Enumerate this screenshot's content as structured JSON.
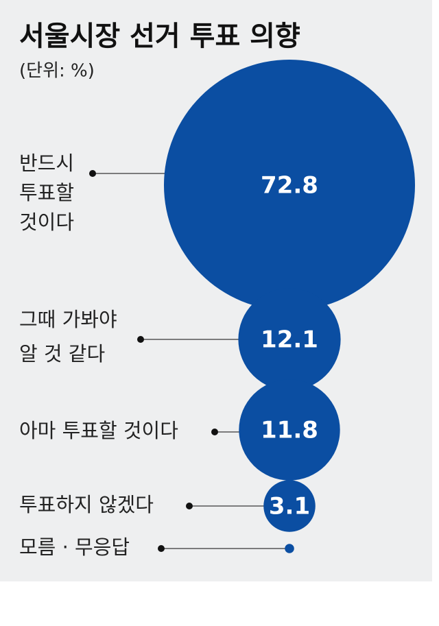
{
  "chart_data": {
    "type": "bubble",
    "title": "서울시장 선거 투표 의향",
    "subtitle": "(단위: %)",
    "categories": [
      [
        "반드시",
        "투표할",
        "것이다"
      ],
      [
        "그때 가봐야",
        "알 것 같다"
      ],
      [
        "아마 투표할 것이다"
      ],
      [
        "투표하지 않겠다"
      ],
      [
        "모름 · 무응답"
      ]
    ],
    "values": [
      72.8,
      12.1,
      11.8,
      3.1,
      0.1
    ],
    "color": "#0b4ea2"
  }
}
